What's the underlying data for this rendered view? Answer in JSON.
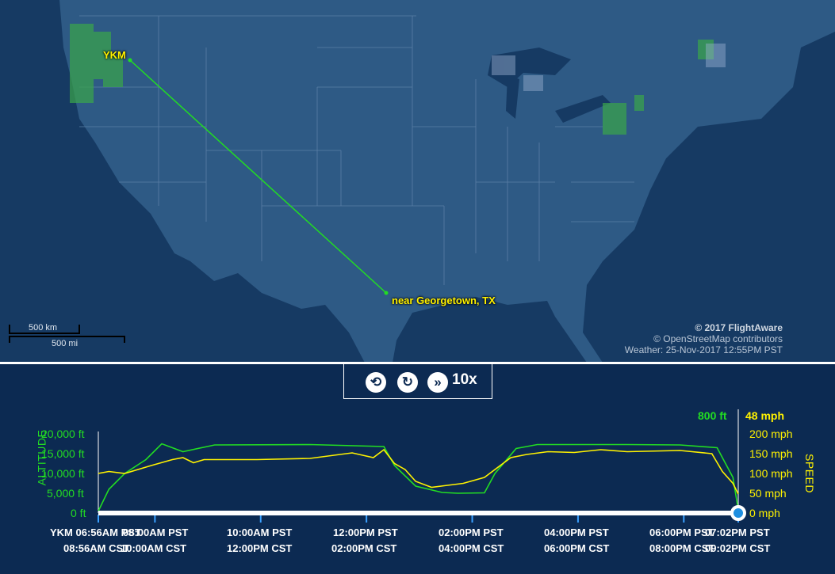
{
  "map": {
    "origin_label": "YKM",
    "destination_label": "near Georgetown, TX",
    "credit": {
      "line1": "© 2017 FlightAware",
      "line2": "© OpenStreetMap contributors",
      "line3": "Weather: 25-Nov-2017 12:55PM PST"
    },
    "scale": {
      "km": "500 km",
      "mi": "500 mi"
    },
    "colors": {
      "route": "#22dd22",
      "label": "#fff200",
      "land": "#2e5a85",
      "water": "#163a63"
    }
  },
  "controls": {
    "replay_icon": "replay-icon",
    "refresh_icon": "refresh-icon",
    "fast_forward_icon": "fast-forward-icon",
    "speed_multiplier": "10x"
  },
  "chart": {
    "current_altitude": "800 ft",
    "current_speed": "48 mph",
    "altitude_title": "ALTITUDE",
    "speed_title": "SPEED",
    "altitude_ticks": [
      "20,000 ft",
      "15,000 ft",
      "10,000 ft",
      "5,000 ft",
      "0 ft"
    ],
    "speed_ticks": [
      "200 mph",
      "150 mph",
      "100 mph",
      "50 mph",
      "0 mph"
    ],
    "time_labels": [
      {
        "pst": "YKM 06:56AM PST",
        "cst": "08:56AM CST"
      },
      {
        "pst": "08:00AM PST",
        "cst": "10:00AM CST"
      },
      {
        "pst": "10:00AM PST",
        "cst": "12:00PM CST"
      },
      {
        "pst": "12:00PM PST",
        "cst": "02:00PM CST"
      },
      {
        "pst": "02:00PM PST",
        "cst": "04:00PM CST"
      },
      {
        "pst": "04:00PM PST",
        "cst": "06:00PM CST"
      },
      {
        "pst": "06:00PM PST",
        "cst": "08:00PM CST"
      },
      {
        "pst": "07:02PM PST",
        "cst": "09:02PM CST"
      }
    ],
    "colors": {
      "altitude": "#22dd22",
      "speed": "#fff200"
    }
  },
  "chart_data": {
    "type": "line",
    "title": "",
    "xlabel": "",
    "ylabel": "ALTITUDE",
    "y2label": "SPEED",
    "x_unit": "hours since departure (06:56AM PST)",
    "ylim": [
      0,
      20000
    ],
    "y2lim": [
      0,
      200
    ],
    "series": [
      {
        "name": "ALTITUDE",
        "axis": "left",
        "x": [
          0,
          0.2,
          0.5,
          0.9,
          1.2,
          1.6,
          2.2,
          4.0,
          5.4,
          5.6,
          6.0,
          6.5,
          6.8,
          7.3,
          7.5,
          7.9,
          8.3,
          9.0,
          10.0,
          11.0,
          11.7,
          12.0,
          12.1
        ],
        "values": [
          500,
          6000,
          10000,
          13500,
          17500,
          15500,
          17200,
          17300,
          16800,
          12000,
          6800,
          5200,
          5000,
          5100,
          10000,
          16300,
          17300,
          17300,
          17300,
          17200,
          16500,
          9000,
          800
        ]
      },
      {
        "name": "SPEED",
        "axis": "right",
        "x": [
          0,
          0.2,
          0.5,
          1.0,
          1.4,
          1.6,
          1.8,
          2.0,
          3.0,
          4.0,
          4.8,
          5.2,
          5.4,
          5.6,
          5.8,
          6.0,
          6.3,
          6.6,
          6.9,
          7.3,
          7.8,
          8.1,
          8.5,
          9.0,
          9.5,
          10.0,
          11.0,
          11.6,
          11.8,
          12.0,
          12.1
        ],
        "values": [
          100,
          105,
          100,
          120,
          135,
          140,
          127,
          135,
          135,
          138,
          152,
          140,
          160,
          125,
          110,
          80,
          65,
          70,
          75,
          90,
          140,
          148,
          155,
          153,
          160,
          155,
          158,
          150,
          105,
          75,
          48
        ]
      }
    ]
  }
}
